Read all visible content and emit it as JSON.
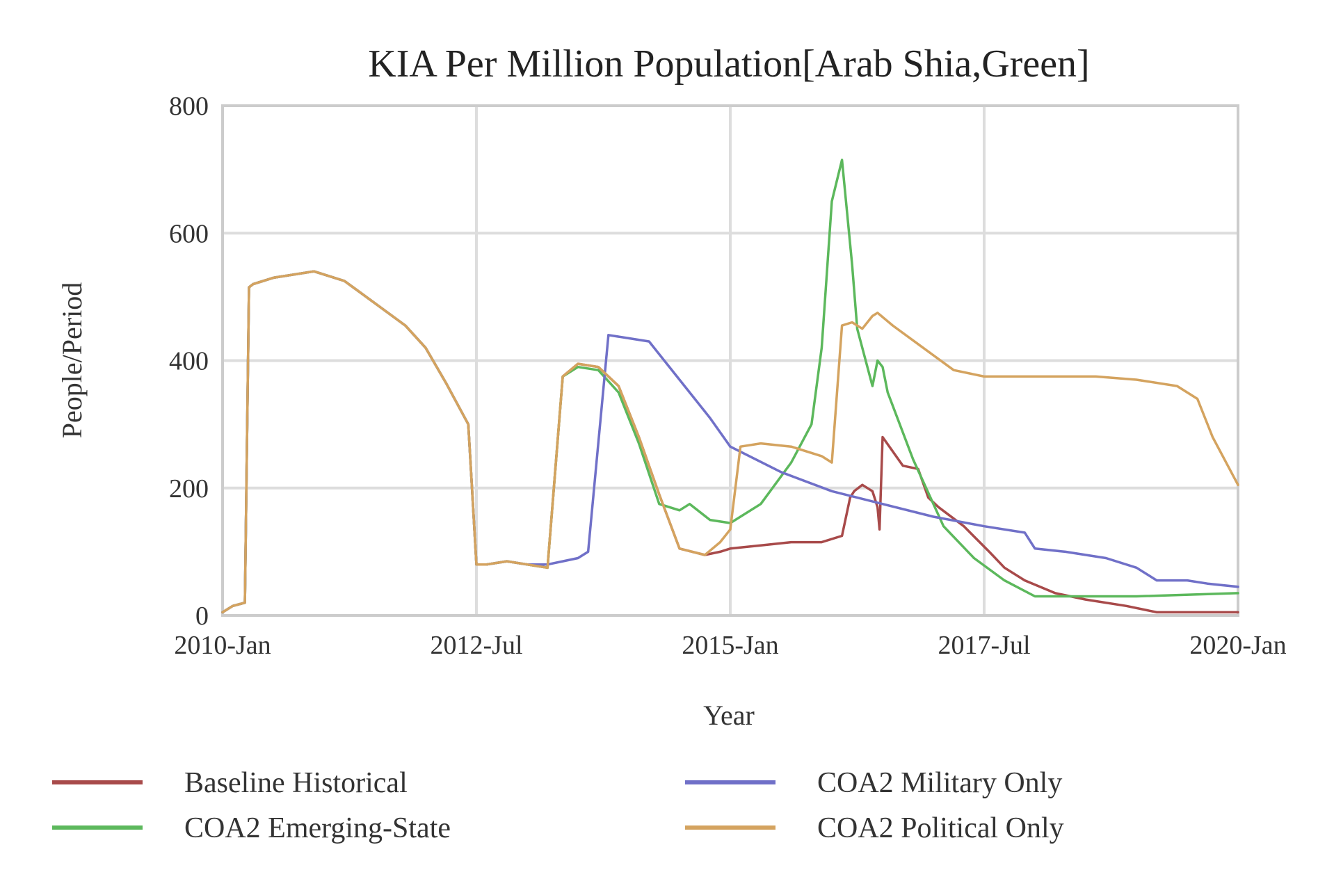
{
  "chart_data": {
    "type": "line",
    "title": "KIA Per Million Population[Arab Shia,Green]",
    "xlabel": "Year",
    "ylabel": "People/Period",
    "xlim": [
      2010.0,
      2020.0
    ],
    "ylim": [
      0,
      800
    ],
    "x_ticks": [
      {
        "value": 2010.0,
        "label": "2010-Jan"
      },
      {
        "value": 2012.5,
        "label": "2012-Jul"
      },
      {
        "value": 2015.0,
        "label": "2015-Jan"
      },
      {
        "value": 2017.5,
        "label": "2017-Jul"
      },
      {
        "value": 2020.0,
        "label": "2020-Jan"
      }
    ],
    "y_ticks": [
      {
        "value": 0,
        "label": "0"
      },
      {
        "value": 200,
        "label": "200"
      },
      {
        "value": 400,
        "label": "400"
      },
      {
        "value": 600,
        "label": "600"
      },
      {
        "value": 800,
        "label": "800"
      }
    ],
    "grid": true,
    "legend_position": "bottom",
    "series": [
      {
        "name": "Baseline Historical",
        "color": "#a84a4a",
        "x": [
          2010.0,
          2010.1,
          2010.22,
          2010.26,
          2010.3,
          2010.5,
          2010.7,
          2010.9,
          2011.2,
          2011.5,
          2011.8,
          2012.0,
          2012.2,
          2012.42,
          2012.5,
          2012.6,
          2012.8,
          2013.0,
          2013.2,
          2013.35,
          2013.5,
          2013.7,
          2013.9,
          2014.1,
          2014.3,
          2014.5,
          2014.75,
          2014.9,
          2015.0,
          2015.3,
          2015.6,
          2015.9,
          2016.1,
          2016.18,
          2016.22,
          2016.3,
          2016.4,
          2016.45,
          2016.47,
          2016.5,
          2016.7,
          2016.85,
          2016.95,
          2017.05,
          2017.3,
          2017.55,
          2017.7,
          2017.9,
          2018.2,
          2018.5,
          2018.9,
          2019.2,
          2019.6,
          2020.0
        ],
        "values": [
          5,
          15,
          20,
          515,
          520,
          530,
          535,
          540,
          525,
          490,
          455,
          420,
          365,
          300,
          80,
          80,
          85,
          80,
          75,
          375,
          395,
          390,
          360,
          280,
          190,
          105,
          95,
          100,
          105,
          110,
          115,
          115,
          125,
          185,
          195,
          205,
          195,
          170,
          135,
          280,
          235,
          230,
          185,
          170,
          140,
          100,
          75,
          55,
          35,
          25,
          15,
          5,
          5,
          5
        ]
      },
      {
        "name": "COA2 Emerging-State",
        "color": "#5cb85c",
        "x": [
          2010.0,
          2010.1,
          2010.22,
          2010.26,
          2010.3,
          2010.5,
          2010.7,
          2010.9,
          2011.2,
          2011.5,
          2011.8,
          2012.0,
          2012.2,
          2012.42,
          2012.5,
          2012.6,
          2012.8,
          2013.0,
          2013.2,
          2013.35,
          2013.5,
          2013.7,
          2013.9,
          2014.1,
          2014.3,
          2014.5,
          2014.6,
          2014.8,
          2015.0,
          2015.3,
          2015.6,
          2015.8,
          2015.9,
          2016.0,
          2016.1,
          2016.2,
          2016.25,
          2016.3,
          2016.4,
          2016.45,
          2016.5,
          2016.55,
          2016.8,
          2017.1,
          2017.4,
          2017.7,
          2018.0,
          2018.5,
          2019.0,
          2020.0
        ],
        "values": [
          5,
          15,
          20,
          515,
          520,
          530,
          535,
          540,
          525,
          490,
          455,
          420,
          365,
          300,
          80,
          80,
          85,
          80,
          75,
          375,
          390,
          385,
          350,
          270,
          175,
          165,
          175,
          150,
          145,
          175,
          240,
          300,
          420,
          650,
          715,
          550,
          450,
          420,
          360,
          400,
          390,
          350,
          245,
          140,
          90,
          55,
          30,
          30,
          30,
          35
        ]
      },
      {
        "name": "COA2 Military Only",
        "color": "#7070c8",
        "x": [
          2010.0,
          2010.1,
          2010.22,
          2010.26,
          2010.3,
          2010.5,
          2010.7,
          2010.9,
          2011.2,
          2011.5,
          2011.8,
          2012.0,
          2012.2,
          2012.42,
          2012.5,
          2012.6,
          2012.8,
          2013.0,
          2013.2,
          2013.35,
          2013.5,
          2013.6,
          2013.8,
          2014.0,
          2014.2,
          2014.5,
          2014.8,
          2015.0,
          2015.5,
          2016.0,
          2016.5,
          2017.0,
          2017.5,
          2017.9,
          2018.0,
          2018.3,
          2018.7,
          2019.0,
          2019.2,
          2019.5,
          2019.7,
          2020.0
        ],
        "values": [
          5,
          15,
          20,
          515,
          520,
          530,
          535,
          540,
          525,
          490,
          455,
          420,
          365,
          300,
          80,
          80,
          85,
          80,
          80,
          85,
          90,
          100,
          440,
          435,
          430,
          370,
          310,
          265,
          225,
          195,
          175,
          155,
          140,
          130,
          105,
          100,
          90,
          75,
          55,
          55,
          50,
          45
        ]
      },
      {
        "name": "COA2 Political Only",
        "color": "#d4a35f",
        "x": [
          2010.0,
          2010.1,
          2010.22,
          2010.26,
          2010.3,
          2010.5,
          2010.7,
          2010.9,
          2011.2,
          2011.5,
          2011.8,
          2012.0,
          2012.2,
          2012.42,
          2012.5,
          2012.6,
          2012.8,
          2013.0,
          2013.2,
          2013.35,
          2013.5,
          2013.7,
          2013.9,
          2014.1,
          2014.3,
          2014.5,
          2014.75,
          2014.9,
          2015.0,
          2015.1,
          2015.3,
          2015.6,
          2015.9,
          2016.0,
          2016.1,
          2016.2,
          2016.3,
          2016.4,
          2016.45,
          2016.6,
          2016.9,
          2017.2,
          2017.5,
          2017.8,
          2018.2,
          2018.6,
          2019.0,
          2019.4,
          2019.6,
          2019.75,
          2020.0
        ],
        "values": [
          5,
          15,
          20,
          515,
          520,
          530,
          535,
          540,
          525,
          490,
          455,
          420,
          365,
          300,
          80,
          80,
          85,
          80,
          75,
          375,
          395,
          390,
          360,
          280,
          190,
          105,
          95,
          115,
          135,
          265,
          270,
          265,
          250,
          240,
          455,
          460,
          450,
          470,
          475,
          455,
          420,
          385,
          375,
          375,
          375,
          375,
          370,
          360,
          340,
          280,
          205
        ]
      }
    ]
  }
}
